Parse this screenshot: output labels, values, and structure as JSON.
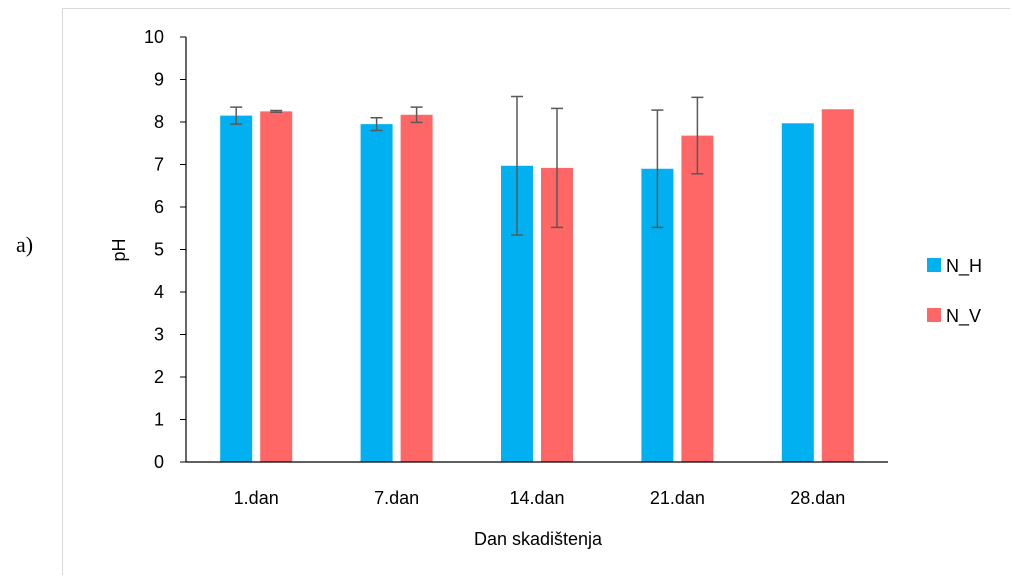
{
  "panel_label": "a)",
  "chart_data": {
    "type": "bar",
    "categories": [
      "1.dan",
      "7.dan",
      "14.dan",
      "21.dan",
      "28.dan"
    ],
    "series": [
      {
        "name": "N_H",
        "color": "#00B0F0",
        "values": [
          8.15,
          7.95,
          6.97,
          6.9,
          7.97
        ],
        "errors": [
          0.2,
          0.15,
          1.63,
          1.38,
          0
        ]
      },
      {
        "name": "N_V",
        "color": "#FF6666",
        "values": [
          8.25,
          8.17,
          6.92,
          7.68,
          8.3
        ],
        "errors": [
          0.02,
          0.18,
          1.4,
          0.9,
          0
        ]
      }
    ],
    "xlabel": "Dan skadištenja",
    "ylabel": "pH",
    "ylim": [
      0,
      10
    ],
    "yticks": [
      "0",
      "1",
      "2",
      "3",
      "4",
      "5",
      "6",
      "7",
      "8",
      "9",
      "10"
    ],
    "grid": false,
    "legend_position": "right"
  }
}
